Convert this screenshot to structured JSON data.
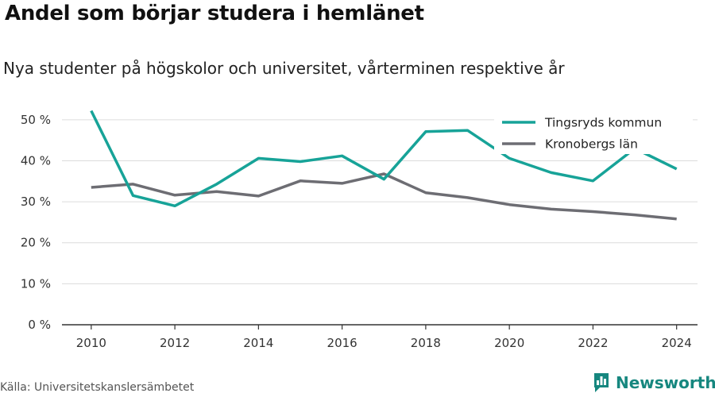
{
  "title": "Andel som börjar studera i hemlänet",
  "subtitle": "Nya studenter på högskolor och universitet, vårterminen respektive år",
  "source": "Källa: Universitetskanslersämbetet",
  "brand": {
    "name": "Newsworthy",
    "icon": "newsworthy-logo-icon",
    "color": "#16877f"
  },
  "chart_data": {
    "type": "line",
    "x": [
      2010,
      2011,
      2012,
      2013,
      2014,
      2015,
      2016,
      2017,
      2018,
      2019,
      2020,
      2021,
      2022,
      2023,
      2024
    ],
    "x_ticks": [
      2010,
      2012,
      2014,
      2016,
      2018,
      2020,
      2022,
      2024
    ],
    "y_ticks": [
      0,
      10,
      20,
      30,
      40,
      50
    ],
    "y_tick_labels": [
      "0 %",
      "10 %",
      "20 %",
      "30 %",
      "40 %",
      "50 %"
    ],
    "ylim": [
      0,
      55
    ],
    "xlim": [
      2009.3,
      2024.5
    ],
    "grid": true,
    "legend_position": "top-right",
    "series": [
      {
        "name": "Tingsryds kommun",
        "color": "#17a398",
        "values": [
          52.2,
          31.5,
          29.0,
          34.3,
          40.6,
          39.8,
          41.2,
          35.5,
          47.1,
          47.4,
          40.6,
          37.1,
          35.1,
          43.0,
          38.0
        ]
      },
      {
        "name": "Kronobergs län",
        "color": "#6d6d73",
        "values": [
          33.5,
          34.3,
          31.6,
          32.5,
          31.4,
          35.1,
          34.5,
          36.8,
          32.2,
          31.0,
          29.3,
          28.2,
          27.6,
          26.8,
          25.8
        ]
      }
    ]
  }
}
